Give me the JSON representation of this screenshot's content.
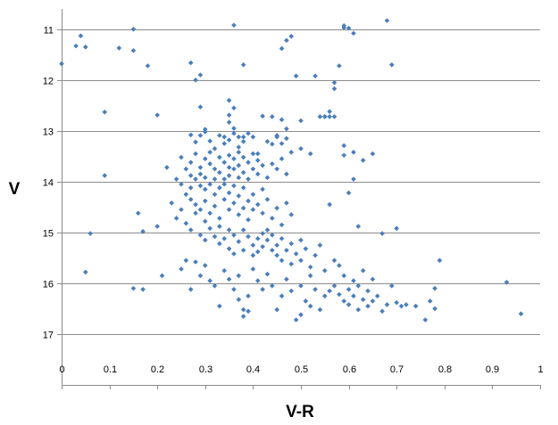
{
  "chart_data": {
    "type": "scatter",
    "title": "",
    "xlabel": "V-R",
    "ylabel": "V",
    "xlim": [
      0,
      1
    ],
    "ylim": [
      18,
      10.6
    ],
    "y_inverted": true,
    "x_ticks": [
      0,
      0.1,
      0.2,
      0.3,
      0.4,
      0.5,
      0.6,
      0.7,
      0.8,
      0.9,
      1
    ],
    "x_tick_labels": [
      "0",
      "0.1",
      "0.2",
      "0.3",
      "0.4",
      "0.5",
      "0.6",
      "0.7",
      "0.8",
      "0.9",
      "1"
    ],
    "y_ticks": [
      11,
      12,
      13,
      14,
      15,
      16,
      17
    ],
    "y_tick_labels": [
      "11",
      "12",
      "13",
      "14",
      "15",
      "16",
      "17"
    ],
    "grid": "horizontal",
    "legend": "none",
    "marker": "diamond",
    "marker_color": "#4a7ebb",
    "series": [
      {
        "points": [
          [
            0.0,
            11.68
          ],
          [
            0.03,
            11.33
          ],
          [
            0.04,
            11.13
          ],
          [
            0.05,
            11.35
          ],
          [
            0.12,
            11.37
          ],
          [
            0.15,
            11.42
          ],
          [
            0.15,
            11.0
          ],
          [
            0.18,
            11.72
          ],
          [
            0.27,
            11.66
          ],
          [
            0.28,
            12.0
          ],
          [
            0.29,
            11.9
          ],
          [
            0.36,
            10.92
          ],
          [
            0.38,
            11.7
          ],
          [
            0.46,
            11.38
          ],
          [
            0.47,
            11.22
          ],
          [
            0.48,
            11.14
          ],
          [
            0.49,
            11.92
          ],
          [
            0.53,
            11.92
          ],
          [
            0.56,
            12.62
          ],
          [
            0.57,
            12.17
          ],
          [
            0.57,
            12.05
          ],
          [
            0.58,
            11.72
          ],
          [
            0.59,
            10.97
          ],
          [
            0.59,
            10.93
          ],
          [
            0.6,
            10.98
          ],
          [
            0.61,
            11.08
          ],
          [
            0.68,
            10.83
          ],
          [
            0.69,
            11.7
          ],
          [
            0.09,
            12.63
          ],
          [
            0.09,
            13.88
          ],
          [
            0.2,
            12.69
          ],
          [
            0.29,
            12.53
          ],
          [
            0.35,
            12.4
          ],
          [
            0.36,
            12.55
          ],
          [
            0.42,
            12.71
          ],
          [
            0.44,
            12.72
          ],
          [
            0.46,
            12.78
          ],
          [
            0.47,
            12.96
          ],
          [
            0.5,
            12.8
          ],
          [
            0.54,
            12.72
          ],
          [
            0.55,
            12.72
          ],
          [
            0.55,
            12.72
          ],
          [
            0.55,
            12.72
          ],
          [
            0.56,
            12.72
          ],
          [
            0.57,
            12.72
          ],
          [
            0.59,
            13.29
          ],
          [
            0.59,
            13.48
          ],
          [
            0.61,
            13.42
          ],
          [
            0.61,
            13.95
          ],
          [
            0.63,
            13.58
          ],
          [
            0.65,
            13.45
          ],
          [
            0.27,
            13.08
          ],
          [
            0.28,
            13.22
          ],
          [
            0.29,
            13.09
          ],
          [
            0.3,
            13.02
          ],
          [
            0.3,
            12.97
          ],
          [
            0.31,
            13.2
          ],
          [
            0.32,
            13.35
          ],
          [
            0.33,
            13.09
          ],
          [
            0.34,
            13.12
          ],
          [
            0.34,
            13.25
          ],
          [
            0.35,
            12.69
          ],
          [
            0.35,
            12.83
          ],
          [
            0.35,
            13.18
          ],
          [
            0.36,
            13.05
          ],
          [
            0.36,
            12.95
          ],
          [
            0.37,
            13.12
          ],
          [
            0.37,
            13.32
          ],
          [
            0.38,
            13.21
          ],
          [
            0.38,
            13.12
          ],
          [
            0.39,
            13.05
          ],
          [
            0.4,
            13.12
          ],
          [
            0.41,
            13.45
          ],
          [
            0.43,
            13.21
          ],
          [
            0.44,
            13.26
          ],
          [
            0.45,
            13.09
          ],
          [
            0.45,
            13.12
          ],
          [
            0.46,
            13.25
          ],
          [
            0.47,
            13.15
          ],
          [
            0.25,
            13.52
          ],
          [
            0.26,
            13.75
          ],
          [
            0.27,
            13.62
          ],
          [
            0.27,
            13.88
          ],
          [
            0.28,
            13.95
          ],
          [
            0.28,
            13.45
          ],
          [
            0.29,
            13.72
          ],
          [
            0.29,
            13.85
          ],
          [
            0.3,
            13.55
          ],
          [
            0.3,
            13.92
          ],
          [
            0.31,
            13.42
          ],
          [
            0.31,
            13.65
          ],
          [
            0.32,
            13.75
          ],
          [
            0.32,
            13.95
          ],
          [
            0.33,
            13.52
          ],
          [
            0.33,
            13.82
          ],
          [
            0.34,
            13.62
          ],
          [
            0.34,
            13.95
          ],
          [
            0.35,
            13.48
          ],
          [
            0.35,
            13.72
          ],
          [
            0.35,
            13.88
          ],
          [
            0.36,
            13.55
          ],
          [
            0.36,
            13.75
          ],
          [
            0.37,
            13.42
          ],
          [
            0.37,
            13.68
          ],
          [
            0.37,
            13.92
          ],
          [
            0.38,
            13.52
          ],
          [
            0.38,
            13.82
          ],
          [
            0.39,
            13.62
          ],
          [
            0.39,
            13.95
          ],
          [
            0.4,
            13.45
          ],
          [
            0.4,
            13.75
          ],
          [
            0.41,
            13.85
          ],
          [
            0.41,
            13.58
          ],
          [
            0.42,
            13.68
          ],
          [
            0.43,
            13.92
          ],
          [
            0.44,
            13.65
          ],
          [
            0.45,
            13.75
          ],
          [
            0.46,
            13.55
          ],
          [
            0.47,
            13.85
          ],
          [
            0.48,
            13.42
          ],
          [
            0.5,
            13.35
          ],
          [
            0.52,
            13.45
          ],
          [
            0.22,
            13.72
          ],
          [
            0.24,
            13.95
          ],
          [
            0.25,
            14.05
          ],
          [
            0.26,
            14.25
          ],
          [
            0.27,
            14.35
          ],
          [
            0.27,
            14.12
          ],
          [
            0.28,
            14.45
          ],
          [
            0.29,
            14.08
          ],
          [
            0.29,
            14.55
          ],
          [
            0.3,
            14.15
          ],
          [
            0.3,
            14.38
          ],
          [
            0.31,
            14.05
          ],
          [
            0.31,
            14.62
          ],
          [
            0.32,
            14.25
          ],
          [
            0.32,
            14.48
          ],
          [
            0.33,
            14.12
          ],
          [
            0.33,
            14.72
          ],
          [
            0.34,
            14.35
          ],
          [
            0.34,
            14.05
          ],
          [
            0.35,
            14.55
          ],
          [
            0.35,
            14.22
          ],
          [
            0.36,
            14.42
          ],
          [
            0.36,
            14.08
          ],
          [
            0.37,
            14.65
          ],
          [
            0.37,
            14.28
          ],
          [
            0.38,
            14.12
          ],
          [
            0.38,
            14.52
          ],
          [
            0.39,
            14.38
          ],
          [
            0.39,
            14.75
          ],
          [
            0.4,
            14.25
          ],
          [
            0.4,
            14.55
          ],
          [
            0.41,
            14.45
          ],
          [
            0.42,
            14.15
          ],
          [
            0.42,
            14.62
          ],
          [
            0.43,
            14.35
          ],
          [
            0.44,
            14.72
          ],
          [
            0.45,
            14.52
          ],
          [
            0.46,
            14.85
          ],
          [
            0.47,
            14.42
          ],
          [
            0.48,
            14.65
          ],
          [
            0.56,
            14.45
          ],
          [
            0.6,
            14.22
          ],
          [
            0.16,
            14.62
          ],
          [
            0.17,
            14.98
          ],
          [
            0.2,
            14.88
          ],
          [
            0.23,
            14.42
          ],
          [
            0.24,
            14.72
          ],
          [
            0.25,
            14.55
          ],
          [
            0.26,
            14.82
          ],
          [
            0.27,
            14.95
          ],
          [
            0.28,
            14.62
          ],
          [
            0.29,
            15.05
          ],
          [
            0.3,
            14.78
          ],
          [
            0.3,
            15.15
          ],
          [
            0.31,
            14.92
          ],
          [
            0.32,
            15.08
          ],
          [
            0.33,
            15.22
          ],
          [
            0.33,
            14.88
          ],
          [
            0.34,
            15.12
          ],
          [
            0.35,
            14.95
          ],
          [
            0.35,
            15.32
          ],
          [
            0.36,
            15.05
          ],
          [
            0.36,
            15.42
          ],
          [
            0.37,
            15.18
          ],
          [
            0.38,
            14.95
          ],
          [
            0.38,
            15.35
          ],
          [
            0.39,
            15.08
          ],
          [
            0.4,
            15.25
          ],
          [
            0.4,
            15.45
          ],
          [
            0.41,
            15.12
          ],
          [
            0.41,
            15.38
          ],
          [
            0.42,
            15.02
          ],
          [
            0.42,
            15.28
          ],
          [
            0.43,
            14.95
          ],
          [
            0.43,
            15.15
          ],
          [
            0.44,
            15.35
          ],
          [
            0.44,
            15.05
          ],
          [
            0.45,
            15.25
          ],
          [
            0.45,
            15.45
          ],
          [
            0.46,
            15.12
          ],
          [
            0.46,
            15.55
          ],
          [
            0.47,
            15.35
          ],
          [
            0.48,
            15.22
          ],
          [
            0.48,
            15.62
          ],
          [
            0.49,
            15.42
          ],
          [
            0.5,
            15.15
          ],
          [
            0.5,
            15.55
          ],
          [
            0.51,
            15.32
          ],
          [
            0.52,
            15.68
          ],
          [
            0.53,
            15.45
          ],
          [
            0.54,
            15.25
          ],
          [
            0.62,
            14.88
          ],
          [
            0.67,
            15.02
          ],
          [
            0.7,
            14.92
          ],
          [
            0.06,
            15.02
          ],
          [
            0.05,
            15.78
          ],
          [
            0.15,
            16.1
          ],
          [
            0.17,
            16.12
          ],
          [
            0.21,
            15.85
          ],
          [
            0.25,
            15.72
          ],
          [
            0.26,
            15.55
          ],
          [
            0.27,
            16.12
          ],
          [
            0.28,
            15.58
          ],
          [
            0.29,
            15.85
          ],
          [
            0.3,
            15.65
          ],
          [
            0.31,
            15.95
          ],
          [
            0.32,
            16.05
          ],
          [
            0.33,
            16.45
          ],
          [
            0.34,
            15.75
          ],
          [
            0.35,
            15.92
          ],
          [
            0.36,
            16.12
          ],
          [
            0.37,
            16.32
          ],
          [
            0.37,
            15.85
          ],
          [
            0.38,
            16.52
          ],
          [
            0.38,
            16.65
          ],
          [
            0.39,
            16.25
          ],
          [
            0.39,
            16.55
          ],
          [
            0.4,
            15.72
          ],
          [
            0.41,
            15.95
          ],
          [
            0.42,
            16.12
          ],
          [
            0.43,
            15.82
          ],
          [
            0.44,
            16.05
          ],
          [
            0.45,
            16.52
          ],
          [
            0.46,
            16.25
          ],
          [
            0.47,
            15.92
          ],
          [
            0.48,
            16.15
          ],
          [
            0.49,
            16.72
          ],
          [
            0.5,
            16.05
          ],
          [
            0.5,
            16.62
          ],
          [
            0.51,
            16.35
          ],
          [
            0.52,
            15.85
          ],
          [
            0.52,
            16.45
          ],
          [
            0.53,
            16.12
          ],
          [
            0.54,
            16.52
          ],
          [
            0.55,
            16.25
          ],
          [
            0.55,
            15.75
          ],
          [
            0.56,
            16.15
          ],
          [
            0.57,
            16.05
          ],
          [
            0.57,
            15.55
          ],
          [
            0.58,
            16.22
          ],
          [
            0.58,
            15.65
          ],
          [
            0.59,
            16.35
          ],
          [
            0.59,
            15.85
          ],
          [
            0.6,
            16.42
          ],
          [
            0.6,
            16.12
          ],
          [
            0.61,
            15.95
          ],
          [
            0.61,
            16.25
          ],
          [
            0.62,
            16.05
          ],
          [
            0.62,
            16.52
          ],
          [
            0.63,
            15.75
          ],
          [
            0.63,
            16.32
          ],
          [
            0.64,
            16.15
          ],
          [
            0.64,
            16.45
          ],
          [
            0.65,
            15.92
          ],
          [
            0.65,
            16.35
          ],
          [
            0.66,
            16.25
          ],
          [
            0.67,
            16.55
          ],
          [
            0.68,
            16.42
          ],
          [
            0.69,
            16.05
          ],
          [
            0.7,
            16.38
          ],
          [
            0.71,
            16.45
          ],
          [
            0.72,
            16.42
          ],
          [
            0.74,
            16.45
          ],
          [
            0.76,
            16.72
          ],
          [
            0.77,
            16.35
          ],
          [
            0.78,
            16.1
          ],
          [
            0.78,
            16.5
          ],
          [
            0.79,
            15.55
          ],
          [
            0.93,
            15.98
          ],
          [
            0.96,
            16.6
          ]
        ]
      }
    ]
  }
}
